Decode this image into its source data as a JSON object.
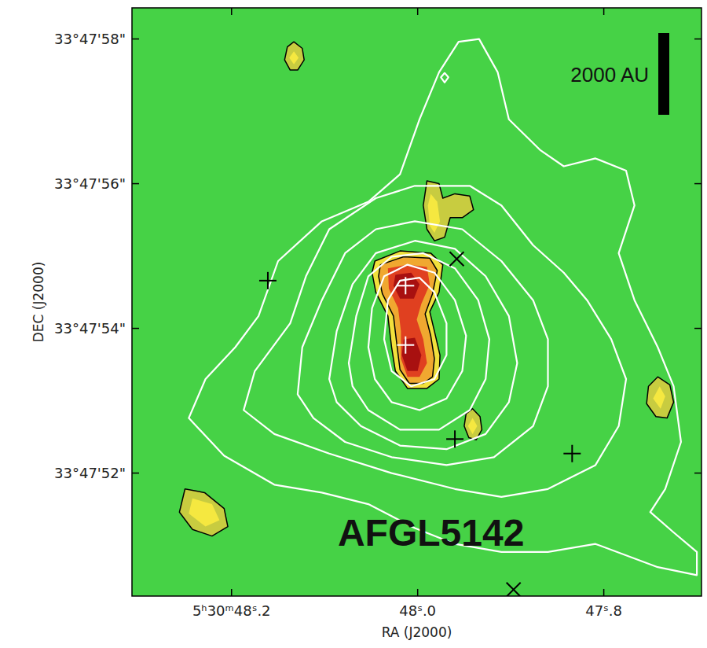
{
  "chart_data": {
    "type": "map",
    "title": "AFGL5142",
    "x_label": "RA (J2000)",
    "y_label": "DEC (J2000)",
    "xlim": [
      48.307,
      47.695
    ],
    "ylim": [
      50.3,
      58.43
    ],
    "xticks": [
      {
        "value": 48.2,
        "label": "5ʰ30ᵐ48ˢ.2"
      },
      {
        "value": 48.0,
        "label": "48ˢ.0"
      },
      {
        "value": 47.8,
        "label": "47ˢ.8"
      }
    ],
    "yticks": [
      {
        "value": 52,
        "label": "33°47'52\""
      },
      {
        "value": 54,
        "label": "33°47'54\""
      },
      {
        "value": 56,
        "label": "33°47'56\""
      },
      {
        "value": 58,
        "label": "33°47'58\""
      }
    ],
    "grid": false,
    "scale_bar": {
      "label": "2000 AU",
      "value": 1.13
    },
    "series": [
      {
        "type": "region",
        "color": "#f2e03c",
        "line_style": "solid",
        "x": [
          48.046,
          48.019,
          47.986,
          47.973,
          47.977,
          47.987,
          47.982,
          47.976,
          47.977,
          47.99,
          48.011,
          48.024,
          48.028,
          48.032,
          48.045,
          48.049
        ],
        "y": [
          54.93,
          55.07,
          55.04,
          54.88,
          54.5,
          54.23,
          53.96,
          53.63,
          53.3,
          53.17,
          53.17,
          53.41,
          53.74,
          54.17,
          54.5,
          54.77
        ]
      },
      {
        "type": "region",
        "color": "#f0a830",
        "line_style": "solid",
        "x": [
          48.04,
          48.015,
          47.987,
          47.979,
          47.984,
          47.992,
          47.986,
          47.982,
          47.984,
          47.994,
          48.009,
          48.019,
          48.022,
          48.026,
          48.038,
          48.042
        ],
        "y": [
          54.88,
          54.99,
          54.97,
          54.8,
          54.48,
          54.2,
          53.9,
          53.58,
          53.33,
          53.24,
          53.24,
          53.43,
          53.74,
          54.17,
          54.48,
          54.72
        ]
      },
      {
        "type": "region",
        "color": "#e04020",
        "line_style": "none",
        "x": [
          48.032,
          48.011,
          47.99,
          47.987,
          47.996,
          48.001,
          47.994,
          47.99,
          47.998,
          48.011,
          48.018,
          48.018,
          48.021,
          48.031
        ],
        "y": [
          54.83,
          54.88,
          54.85,
          54.61,
          54.34,
          54.12,
          53.85,
          53.52,
          53.33,
          53.33,
          53.58,
          53.96,
          54.28,
          54.55
        ]
      },
      {
        "type": "region",
        "color": "#a81010",
        "line_style": "none",
        "x": [
          48.024,
          48.007,
          47.998,
          48.004,
          48.019,
          48.026
        ],
        "y": [
          54.74,
          54.77,
          54.61,
          54.41,
          54.41,
          54.59
        ]
      },
      {
        "type": "region",
        "color": "#a81010",
        "line_style": "none",
        "x": [
          48.015,
          48.003,
          47.996,
          48.0,
          48.011,
          48.017
        ],
        "y": [
          53.85,
          53.87,
          53.63,
          53.41,
          53.41,
          53.63
        ]
      },
      {
        "type": "region",
        "color": "#c8cc40",
        "line_style": "solid",
        "x": [
          48.133,
          48.124,
          48.122,
          48.129,
          48.137,
          48.143,
          48.14
        ],
        "y": [
          57.96,
          57.87,
          57.71,
          57.57,
          57.57,
          57.71,
          57.89
        ]
      },
      {
        "type": "region",
        "color": "#f5e840",
        "line_style": "none",
        "x": [
          48.133,
          48.128,
          48.133,
          48.138
        ],
        "y": [
          57.83,
          57.74,
          57.65,
          57.74
        ]
      },
      {
        "type": "region",
        "color": "#c8cc40",
        "line_style": "solid",
        "x": [
          47.99,
          47.977,
          47.973,
          47.96,
          47.944,
          47.94,
          47.952,
          47.965,
          47.971,
          47.982,
          47.99,
          47.994
        ],
        "y": [
          56.04,
          56.0,
          55.8,
          55.86,
          55.83,
          55.64,
          55.53,
          55.53,
          55.26,
          55.21,
          55.37,
          55.7
        ]
      },
      {
        "type": "region",
        "color": "#f5e840",
        "line_style": "none",
        "x": [
          47.986,
          47.979,
          47.976,
          47.982,
          47.987,
          47.989
        ],
        "y": [
          55.86,
          55.75,
          55.48,
          55.32,
          55.42,
          55.7
        ]
      },
      {
        "type": "region",
        "color": "#c8cc40",
        "line_style": "solid",
        "x": [
          47.941,
          47.933,
          47.931,
          47.937,
          47.945,
          47.95,
          47.948
        ],
        "y": [
          52.89,
          52.78,
          52.6,
          52.46,
          52.49,
          52.65,
          52.82
        ]
      },
      {
        "type": "region",
        "color": "#f5e840",
        "line_style": "none",
        "x": [
          47.941,
          47.936,
          47.941,
          47.946
        ],
        "y": [
          52.76,
          52.65,
          52.54,
          52.65
        ]
      },
      {
        "type": "region",
        "color": "#c8cc40",
        "line_style": "solid",
        "x": [
          47.742,
          47.729,
          47.725,
          47.732,
          47.744,
          47.754,
          47.752
        ],
        "y": [
          53.33,
          53.22,
          52.98,
          52.76,
          52.78,
          52.96,
          53.2
        ]
      },
      {
        "type": "region",
        "color": "#f5e840",
        "line_style": "none",
        "x": [
          47.74,
          47.734,
          47.739,
          47.747
        ],
        "y": [
          53.2,
          53.06,
          52.89,
          53.03
        ]
      },
      {
        "type": "region",
        "color": "#c8cc40",
        "line_style": "solid",
        "x": [
          48.25,
          48.229,
          48.208,
          48.204,
          48.221,
          48.242,
          48.256
        ],
        "y": [
          51.78,
          51.73,
          51.51,
          51.26,
          51.13,
          51.22,
          51.46
        ]
      },
      {
        "type": "region",
        "color": "#f5e840",
        "line_style": "none",
        "x": [
          48.242,
          48.221,
          48.213,
          48.228,
          48.246
        ],
        "y": [
          51.65,
          51.57,
          51.35,
          51.26,
          51.44
        ]
      },
      {
        "type": "contour",
        "color": "#ffffff",
        "line_style": "solid",
        "x": [
          48.208,
          48.246,
          48.228,
          48.196,
          48.171,
          48.15,
          48.103,
          48.053,
          48.019,
          47.998,
          47.977,
          47.956,
          47.934,
          47.914,
          47.902,
          47.868,
          47.843,
          47.809,
          47.776,
          47.767,
          47.784,
          47.767,
          47.742,
          47.725,
          47.717,
          47.734,
          47.75,
          47.725,
          47.7,
          47.7,
          47.742,
          47.809,
          47.86,
          47.91,
          47.96,
          48.003,
          48.053,
          48.103,
          48.154
        ],
        "y": [
          52.24,
          52.76,
          53.3,
          53.74,
          54.17,
          54.93,
          55.48,
          55.75,
          56.13,
          56.89,
          57.54,
          57.96,
          58.0,
          57.54,
          56.89,
          56.46,
          56.24,
          56.35,
          56.18,
          55.7,
          55.04,
          54.39,
          53.74,
          53.2,
          52.43,
          51.78,
          51.46,
          51.18,
          50.91,
          50.59,
          50.7,
          51.02,
          50.91,
          50.91,
          51.02,
          51.24,
          51.57,
          51.73,
          51.84
        ]
      },
      {
        "type": "contour",
        "color": "#ffffff",
        "line_style": "solid",
        "x": [
          48.187,
          48.175,
          48.137,
          48.12,
          48.095,
          48.045,
          48.003,
          47.944,
          47.91,
          47.876,
          47.843,
          47.818,
          47.792,
          47.776,
          47.784,
          47.809,
          47.86,
          47.91,
          47.96,
          48.028,
          48.095,
          48.154
        ],
        "y": [
          52.87,
          53.41,
          54.07,
          54.72,
          55.37,
          55.8,
          55.97,
          55.97,
          55.7,
          55.15,
          54.77,
          54.39,
          53.85,
          53.3,
          52.65,
          52.11,
          51.78,
          51.67,
          51.78,
          52.0,
          52.27,
          52.54
        ]
      },
      {
        "type": "contour",
        "color": "#ffffff",
        "line_style": "solid",
        "x": [
          48.129,
          48.124,
          48.103,
          48.078,
          48.045,
          48.003,
          47.952,
          47.91,
          47.876,
          47.86,
          47.86,
          47.876,
          47.918,
          47.969,
          48.028,
          48.078,
          48.112
        ],
        "y": [
          53.09,
          53.74,
          54.39,
          55.04,
          55.37,
          55.48,
          55.37,
          54.93,
          54.39,
          53.85,
          53.2,
          52.65,
          52.22,
          52.11,
          52.22,
          52.43,
          52.76
        ]
      },
      {
        "type": "contour",
        "color": "#ffffff",
        "line_style": "solid",
        "x": [
          48.095,
          48.087,
          48.07,
          48.045,
          48.003,
          47.96,
          47.927,
          47.902,
          47.893,
          47.902,
          47.927,
          47.969,
          48.019,
          48.061,
          48.087
        ],
        "y": [
          53.3,
          53.96,
          54.61,
          55.04,
          55.21,
          55.1,
          54.72,
          54.17,
          53.52,
          52.98,
          52.54,
          52.33,
          52.38,
          52.65,
          52.98
        ]
      },
      {
        "type": "contour",
        "color": "#ffffff",
        "line_style": "solid",
        "x": [
          48.074,
          48.066,
          48.053,
          48.028,
          47.994,
          47.96,
          47.935,
          47.923,
          47.927,
          47.944,
          47.977,
          48.019,
          48.053,
          48.07
        ],
        "y": [
          53.52,
          54.17,
          54.72,
          54.99,
          55.04,
          54.83,
          54.39,
          53.85,
          53.3,
          52.87,
          52.6,
          52.6,
          52.87,
          53.2
        ]
      },
      {
        "type": "contour",
        "color": "#ffffff",
        "line_style": "solid",
        "x": [
          48.053,
          48.049,
          48.036,
          48.011,
          47.982,
          47.96,
          47.948,
          47.952,
          47.969,
          47.998,
          48.028,
          48.046
        ],
        "y": [
          53.74,
          54.28,
          54.72,
          54.88,
          54.77,
          54.39,
          53.9,
          53.41,
          53.03,
          52.87,
          52.98,
          53.3
        ]
      },
      {
        "type": "contour",
        "color": "#ffffff",
        "line_style": "solid",
        "x": [
          48.036,
          48.032,
          48.019,
          47.998,
          47.982,
          47.969,
          47.969,
          47.982,
          48.007,
          48.028
        ],
        "y": [
          53.85,
          54.39,
          54.66,
          54.7,
          54.5,
          54.07,
          53.63,
          53.3,
          53.2,
          53.41
        ]
      },
      {
        "type": "contour",
        "color": "#ffffff",
        "line_style": "solid",
        "x": [
          47.971,
          47.967,
          47.971,
          47.975
        ],
        "y": [
          57.53,
          57.47,
          57.4,
          57.47
        ]
      },
      {
        "type": "scatter",
        "marker": "plus",
        "color": "#000000",
        "x": [
          48.161,
          47.96,
          47.834
        ],
        "y": [
          54.66,
          52.47,
          52.27
        ]
      },
      {
        "type": "scatter",
        "marker": "plus",
        "color": "#ffffff",
        "x": [
          48.013,
          48.013
        ],
        "y": [
          54.59,
          53.77
        ]
      },
      {
        "type": "scatter",
        "marker": "cross",
        "color": "#000000",
        "x": [
          47.958,
          47.897
        ],
        "y": [
          54.96,
          50.39
        ]
      }
    ]
  }
}
